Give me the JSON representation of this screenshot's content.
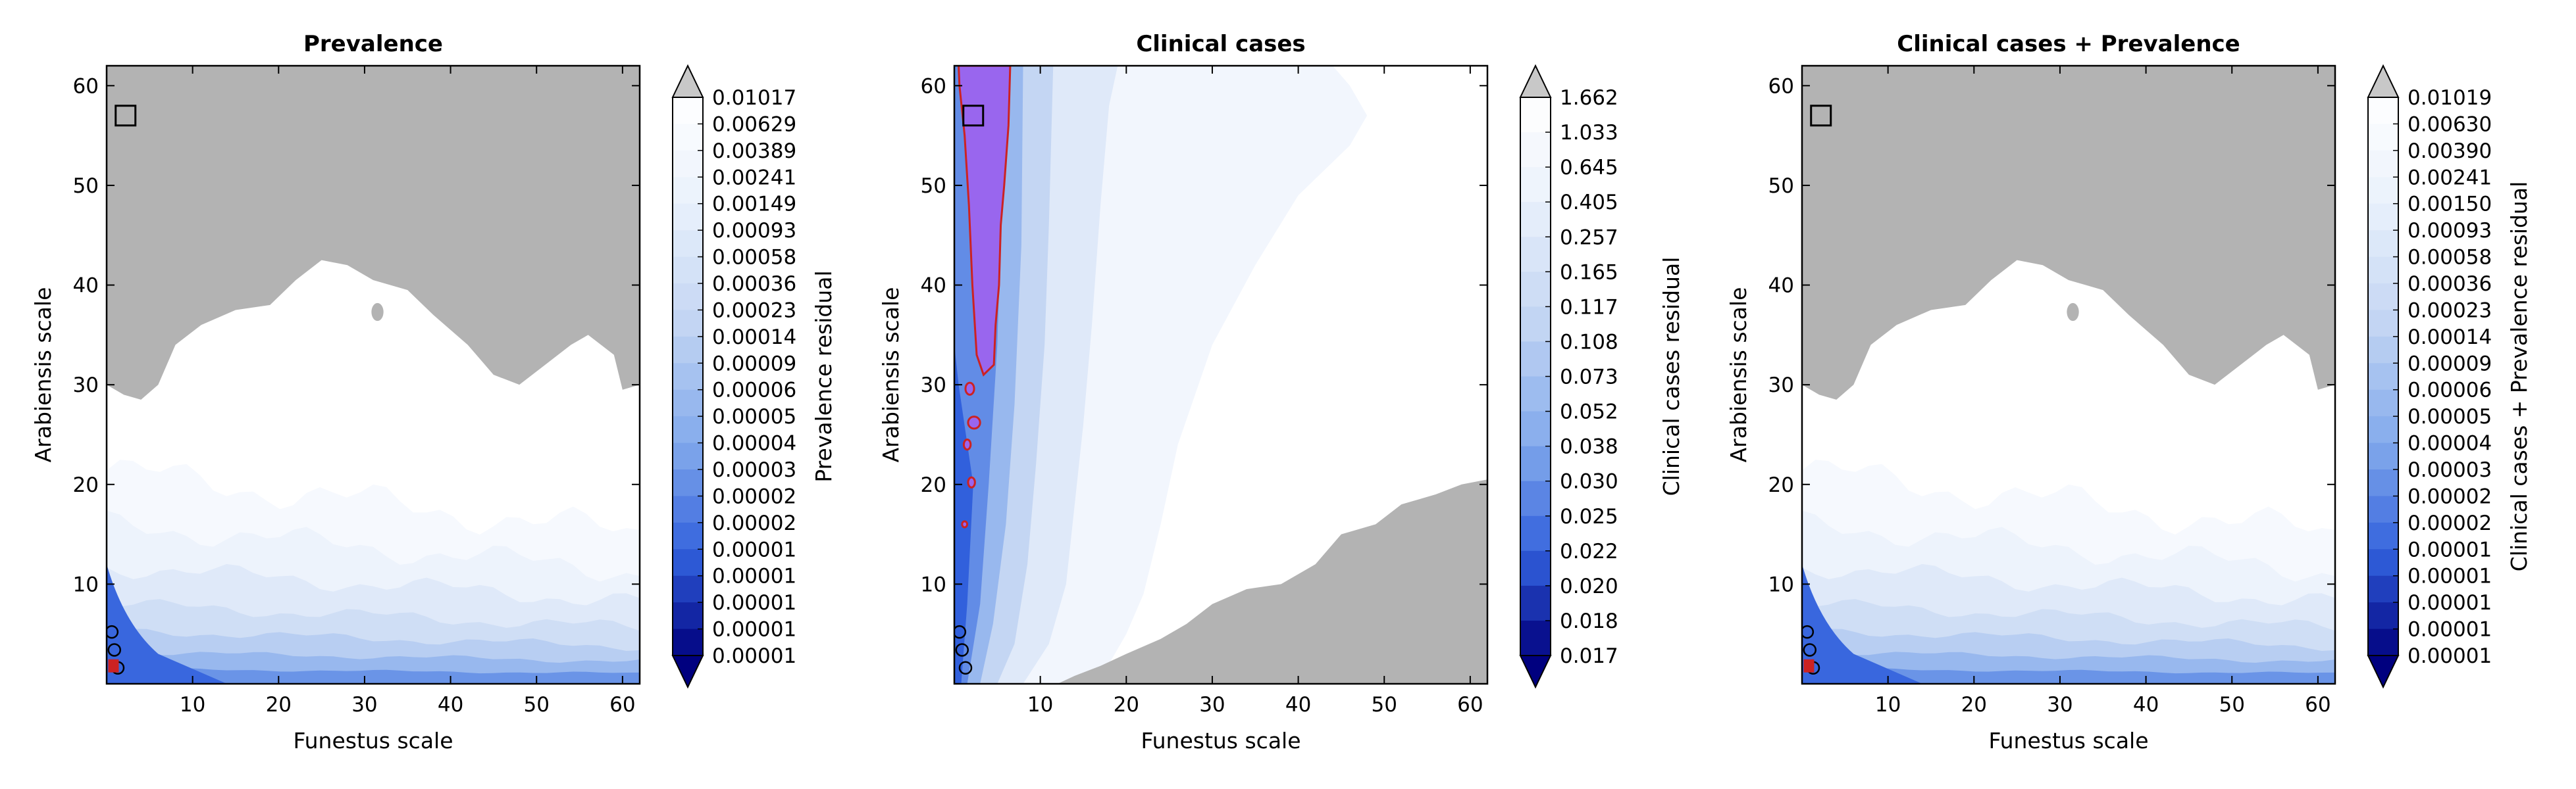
{
  "colors": {
    "gray": "#b3b3b3",
    "contour": "#cc2222",
    "purple": "#9966ee",
    "box": "#000000",
    "scale_light": "#ffffff",
    "scale_dark": "#00007f"
  },
  "chart_data": [
    {
      "type": "contour",
      "title": "Prevalence",
      "xlabel": "Funestus scale",
      "ylabel": "Arabiensis scale",
      "xlim": [
        0,
        62
      ],
      "ylim": [
        0,
        62
      ],
      "xticks": [
        10,
        20,
        30,
        40,
        50,
        60
      ],
      "yticks": [
        10,
        20,
        30,
        40,
        50,
        60
      ],
      "colorbar": {
        "label": "Prevalence residual",
        "ticks": [
          "0.01017",
          "0.00629",
          "0.00389",
          "0.00241",
          "0.00149",
          "0.00093",
          "0.00058",
          "0.00036",
          "0.00023",
          "0.00014",
          "0.00009",
          "0.00006",
          "0.00005",
          "0.00004",
          "0.00003",
          "0.00002",
          "0.00002",
          "0.00001",
          "0.00001",
          "0.00001",
          "0.00001",
          "0.00001"
        ]
      },
      "marker": {
        "x": 2.2,
        "y": 57
      },
      "gray_region": [
        [
          0,
          62
        ],
        [
          62,
          62
        ],
        [
          62,
          30
        ],
        [
          60,
          29.5
        ],
        [
          59,
          33
        ],
        [
          56,
          35
        ],
        [
          54,
          34
        ],
        [
          51,
          32
        ],
        [
          48,
          30
        ],
        [
          45,
          31
        ],
        [
          42,
          34
        ],
        [
          38,
          37
        ],
        [
          35,
          39.5
        ],
        [
          31,
          40.5
        ],
        [
          28,
          42
        ],
        [
          25,
          42.5
        ],
        [
          22,
          40.5
        ],
        [
          19,
          38
        ],
        [
          15,
          37.5
        ],
        [
          11,
          36
        ],
        [
          8,
          34
        ],
        [
          6,
          30
        ],
        [
          4,
          28.5
        ],
        [
          2,
          29
        ],
        [
          0,
          30
        ]
      ],
      "gray_blobs": [
        {
          "x": 31.5,
          "y": 37.3,
          "rx": 0.7,
          "ry": 0.9
        }
      ],
      "contour_outlines": [
        {
          "x": 0.6,
          "y": 5.2
        },
        {
          "x": 0.9,
          "y": 3.4
        },
        {
          "x": 1.3,
          "y": 1.6
        }
      ],
      "contour_fills": [
        {
          "x": 0.8,
          "y": 1.8
        }
      ]
    },
    {
      "type": "contour",
      "title": "Clinical cases",
      "xlabel": "Funestus scale",
      "ylabel": "Arabiensis scale",
      "xlim": [
        0,
        62
      ],
      "ylim": [
        0,
        62
      ],
      "xticks": [
        10,
        20,
        30,
        40,
        50,
        60
      ],
      "yticks": [
        10,
        20,
        30,
        40,
        50,
        60
      ],
      "colorbar": {
        "label": "Clinical cases residual",
        "ticks": [
          "1.662",
          "1.033",
          "0.645",
          "0.405",
          "0.257",
          "0.165",
          "0.117",
          "0.108",
          "0.073",
          "0.052",
          "0.038",
          "0.030",
          "0.025",
          "0.022",
          "0.020",
          "0.018",
          "0.017"
        ]
      },
      "marker": {
        "x": 2.2,
        "y": 57
      },
      "gray_region": [
        [
          62,
          0
        ],
        [
          62,
          20.5
        ],
        [
          59,
          20
        ],
        [
          56,
          19
        ],
        [
          52,
          18
        ],
        [
          49,
          16
        ],
        [
          45,
          15
        ],
        [
          42,
          12
        ],
        [
          38,
          10
        ],
        [
          34,
          9.5
        ],
        [
          30,
          8
        ],
        [
          27,
          6
        ],
        [
          24,
          4.5
        ],
        [
          20,
          3
        ],
        [
          17,
          1.8
        ],
        [
          14,
          0.8
        ],
        [
          12,
          0
        ]
      ],
      "purple_region": [
        [
          0.5,
          62
        ],
        [
          6.5,
          62
        ],
        [
          6.3,
          56
        ],
        [
          5.8,
          50
        ],
        [
          5.4,
          46
        ],
        [
          5.2,
          40
        ],
        [
          4.8,
          36
        ],
        [
          4.6,
          32
        ],
        [
          3.4,
          31
        ],
        [
          2.6,
          33
        ],
        [
          2.1,
          40
        ],
        [
          1.7,
          48
        ],
        [
          1.2,
          55
        ],
        [
          0.6,
          60
        ]
      ],
      "purple_blobs": [
        {
          "x": 1.8,
          "y": 29.6,
          "rx": 0.5,
          "ry": 0.6
        },
        {
          "x": 2.3,
          "y": 26.2,
          "rx": 0.7,
          "ry": 0.6
        },
        {
          "x": 1.5,
          "y": 24.0,
          "rx": 0.4,
          "ry": 0.5
        },
        {
          "x": 2.0,
          "y": 20.2,
          "rx": 0.4,
          "ry": 0.5
        },
        {
          "x": 1.2,
          "y": 16.0,
          "rx": 0.3,
          "ry": 0.3
        }
      ],
      "contour_outlines": [
        {
          "x": 0.6,
          "y": 5.2
        },
        {
          "x": 0.9,
          "y": 3.4
        },
        {
          "x": 1.3,
          "y": 1.6
        }
      ]
    },
    {
      "type": "contour",
      "title": "Clinical cases + Prevalence",
      "xlabel": "Funestus scale",
      "ylabel": "Arabiensis scale",
      "xlim": [
        0,
        62
      ],
      "ylim": [
        0,
        62
      ],
      "xticks": [
        10,
        20,
        30,
        40,
        50,
        60
      ],
      "yticks": [
        10,
        20,
        30,
        40,
        50,
        60
      ],
      "colorbar": {
        "label": "Clinical cases + Prevalence residual",
        "ticks": [
          "0.01019",
          "0.00630",
          "0.00390",
          "0.00241",
          "0.00150",
          "0.00093",
          "0.00058",
          "0.00036",
          "0.00023",
          "0.00014",
          "0.00009",
          "0.00006",
          "0.00005",
          "0.00004",
          "0.00003",
          "0.00002",
          "0.00002",
          "0.00001",
          "0.00001",
          "0.00001",
          "0.00001",
          "0.00001"
        ]
      },
      "marker": {
        "x": 2.2,
        "y": 57
      },
      "gray_region": [
        [
          0,
          62
        ],
        [
          62,
          62
        ],
        [
          62,
          30
        ],
        [
          60,
          29.5
        ],
        [
          59,
          33
        ],
        [
          56,
          35
        ],
        [
          54,
          34
        ],
        [
          51,
          32
        ],
        [
          48,
          30
        ],
        [
          45,
          31
        ],
        [
          42,
          34
        ],
        [
          38,
          37
        ],
        [
          35,
          39.5
        ],
        [
          31,
          40.5
        ],
        [
          28,
          42
        ],
        [
          25,
          42.5
        ],
        [
          22,
          40.5
        ],
        [
          19,
          38
        ],
        [
          15,
          37.5
        ],
        [
          11,
          36
        ],
        [
          8,
          34
        ],
        [
          6,
          30
        ],
        [
          4,
          28.5
        ],
        [
          2,
          29
        ],
        [
          0,
          30
        ]
      ],
      "gray_blobs": [
        {
          "x": 31.5,
          "y": 37.3,
          "rx": 0.7,
          "ry": 0.9
        }
      ],
      "contour_outlines": [
        {
          "x": 0.6,
          "y": 5.2
        },
        {
          "x": 0.9,
          "y": 3.4
        },
        {
          "x": 1.3,
          "y": 1.6
        }
      ],
      "contour_fills": [
        {
          "x": 0.8,
          "y": 1.8
        }
      ]
    }
  ]
}
